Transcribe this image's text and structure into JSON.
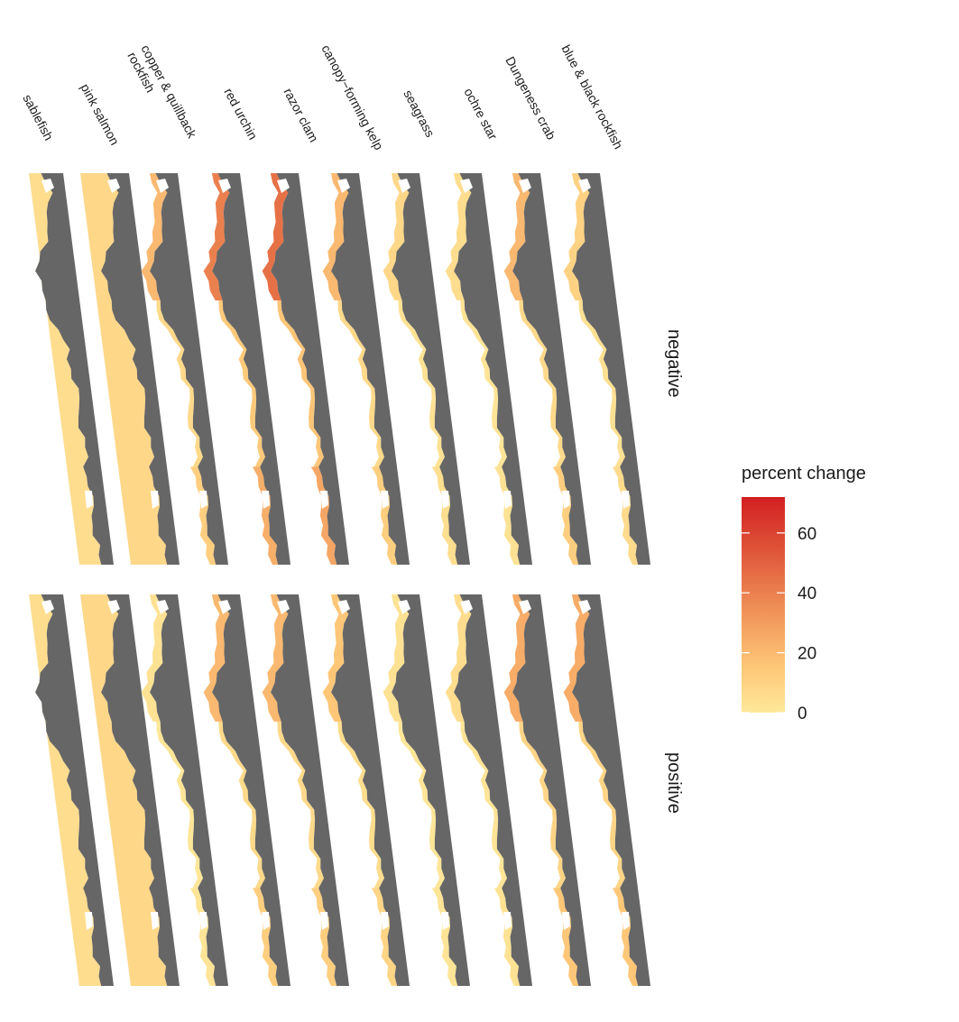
{
  "chart_data": {
    "type": "heatmap",
    "columns": [
      "sablefish",
      "pink salmon",
      "copper & quillback rockfish",
      "red urchin",
      "razor clam",
      "canopy−forming kelp",
      "seagrass",
      "ochre star",
      "Dungeness crab",
      "blue & black rockfish"
    ],
    "column_label_lines": [
      [
        "sablefish"
      ],
      [
        "pink salmon"
      ],
      [
        "copper & quillback",
        "rockfish"
      ],
      [
        "red urchin"
      ],
      [
        "razor clam"
      ],
      [
        "canopy−forming kelp"
      ],
      [
        "seagrass"
      ],
      [
        "ochre star"
      ],
      [
        "Dungeness crab"
      ],
      [
        "blue & black rockfish"
      ]
    ],
    "rows": [
      "negative",
      "positive"
    ],
    "legend": {
      "title": "percent change",
      "ticks": [
        0,
        20,
        40,
        60
      ],
      "range": [
        0,
        72
      ],
      "colors": [
        "#fee89a",
        "#fec979",
        "#f4a161",
        "#e8764a",
        "#dc4a34",
        "#d21f22"
      ]
    },
    "approx_max_percent_change": {
      "negative": [
        5,
        8,
        20,
        40,
        45,
        20,
        8,
        5,
        20,
        10
      ],
      "positive": [
        5,
        8,
        3,
        20,
        20,
        15,
        3,
        5,
        25,
        25
      ]
    },
    "land_color": "#666666"
  }
}
